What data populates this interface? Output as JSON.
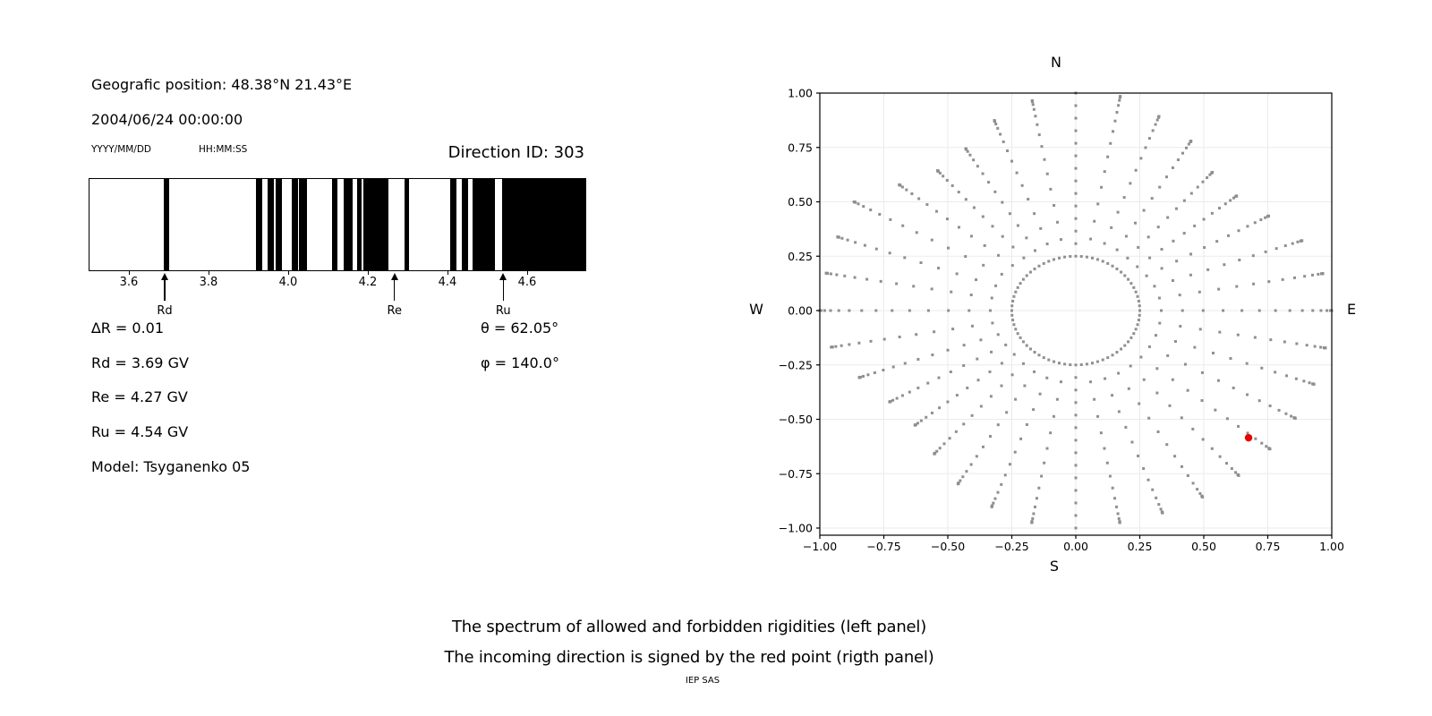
{
  "header": {
    "geo_position": "Geografic position: 48.38°N 21.43°E",
    "datetime": "2004/06/24 00:00:00",
    "date_format": "YYYY/MM/DD",
    "time_format": "HH:MM:SS",
    "direction_id": "Direction ID: 303"
  },
  "info": {
    "lines_left": [
      "∆R = 0.01",
      "Rd = 3.69 GV",
      "Re = 4.27 GV",
      "Ru = 4.54 GV",
      "Model: Tsyganenko 05"
    ],
    "lines_right": [
      "θ = 62.05°",
      "φ = 140.0°"
    ]
  },
  "caption": {
    "line1": "The spectrum of allowed and forbidden rigidities (left panel)",
    "line2": "The incoming direction is signed by the red point (rigth panel)",
    "footer": "IEP SAS"
  },
  "chart_data": [
    {
      "type": "bar",
      "name": "rigidity-spectrum",
      "unit": "GV",
      "x_min": 3.499,
      "x_max": 4.744,
      "x_ticks": [
        3.6,
        3.8,
        4.0,
        4.2,
        4.4,
        4.6
      ],
      "x_tick_labels": [
        "3.6",
        "3.8",
        "4.0",
        "4.2",
        "4.4",
        "4.6"
      ],
      "allowed_intervals_gv": [
        [
          3.685,
          3.7
        ],
        [
          3.916,
          3.932
        ],
        [
          3.947,
          3.962
        ],
        [
          3.966,
          3.982
        ],
        [
          4.007,
          4.023
        ],
        [
          4.025,
          4.045
        ],
        [
          4.108,
          4.122
        ],
        [
          4.138,
          4.16
        ],
        [
          4.172,
          4.183
        ],
        [
          4.187,
          4.25
        ],
        [
          4.29,
          4.302
        ],
        [
          4.404,
          4.421
        ],
        [
          4.433,
          4.45
        ],
        [
          4.46,
          4.518
        ],
        [
          4.535,
          4.744
        ]
      ],
      "arrows": [
        {
          "label": "Rd",
          "value": 3.69
        },
        {
          "label": "Re",
          "value": 4.267
        },
        {
          "label": "Ru",
          "value": 4.54
        }
      ],
      "bar_color": "#000000"
    },
    {
      "type": "scatter",
      "name": "incoming-directions",
      "xlim": [
        -1,
        1
      ],
      "ylim": [
        -1,
        1
      ],
      "x_ticks": [
        -1.0,
        -0.75,
        -0.5,
        -0.25,
        0.0,
        0.25,
        0.5,
        0.75,
        1.0
      ],
      "x_tick_labels": [
        "−1.00",
        "−0.75",
        "−0.50",
        "−0.25",
        "0.00",
        "0.25",
        "0.50",
        "0.75",
        "1.00"
      ],
      "y_ticks": [
        1.0,
        0.75,
        0.5,
        0.25,
        0.0,
        -0.25,
        -0.5,
        -0.75,
        -1.0
      ],
      "y_tick_labels": [
        "1.00",
        "0.75",
        "0.50",
        "0.25",
        "0.00",
        "−0.25",
        "−0.50",
        "−0.75",
        "−1.00"
      ],
      "compass": {
        "top": "N",
        "bottom": "S",
        "left": "W",
        "right": "E"
      },
      "grid": true,
      "grid_color": "#ebebeb",
      "dot_color": "#8f8f8f",
      "inner_ring": {
        "radius": 0.25,
        "count": 72
      },
      "spokes": {
        "step_deg": 10,
        "start_radius": 0.25,
        "dots_per_spoke": 14,
        "tip_radii": [
          1.0,
          1.0,
          0.95,
          0.9,
          0.83,
          0.82,
          0.87,
          0.94,
          0.98,
          1.0,
          0.99,
          0.99,
          0.99,
          0.99,
          0.99,
          0.99,
          0.99,
          0.99,
          1.0,
          0.99,
          0.96,
          0.92,
          0.86,
          0.82,
          0.84,
          0.9,
          0.97,
          1.0,
          0.99,
          0.99,
          1.0,
          0.9,
          0.84,
          0.86,
          0.93,
          0.98
        ]
      },
      "red_point": {
        "x": 0.675,
        "y": -0.585,
        "color": "#e80000"
      }
    }
  ]
}
